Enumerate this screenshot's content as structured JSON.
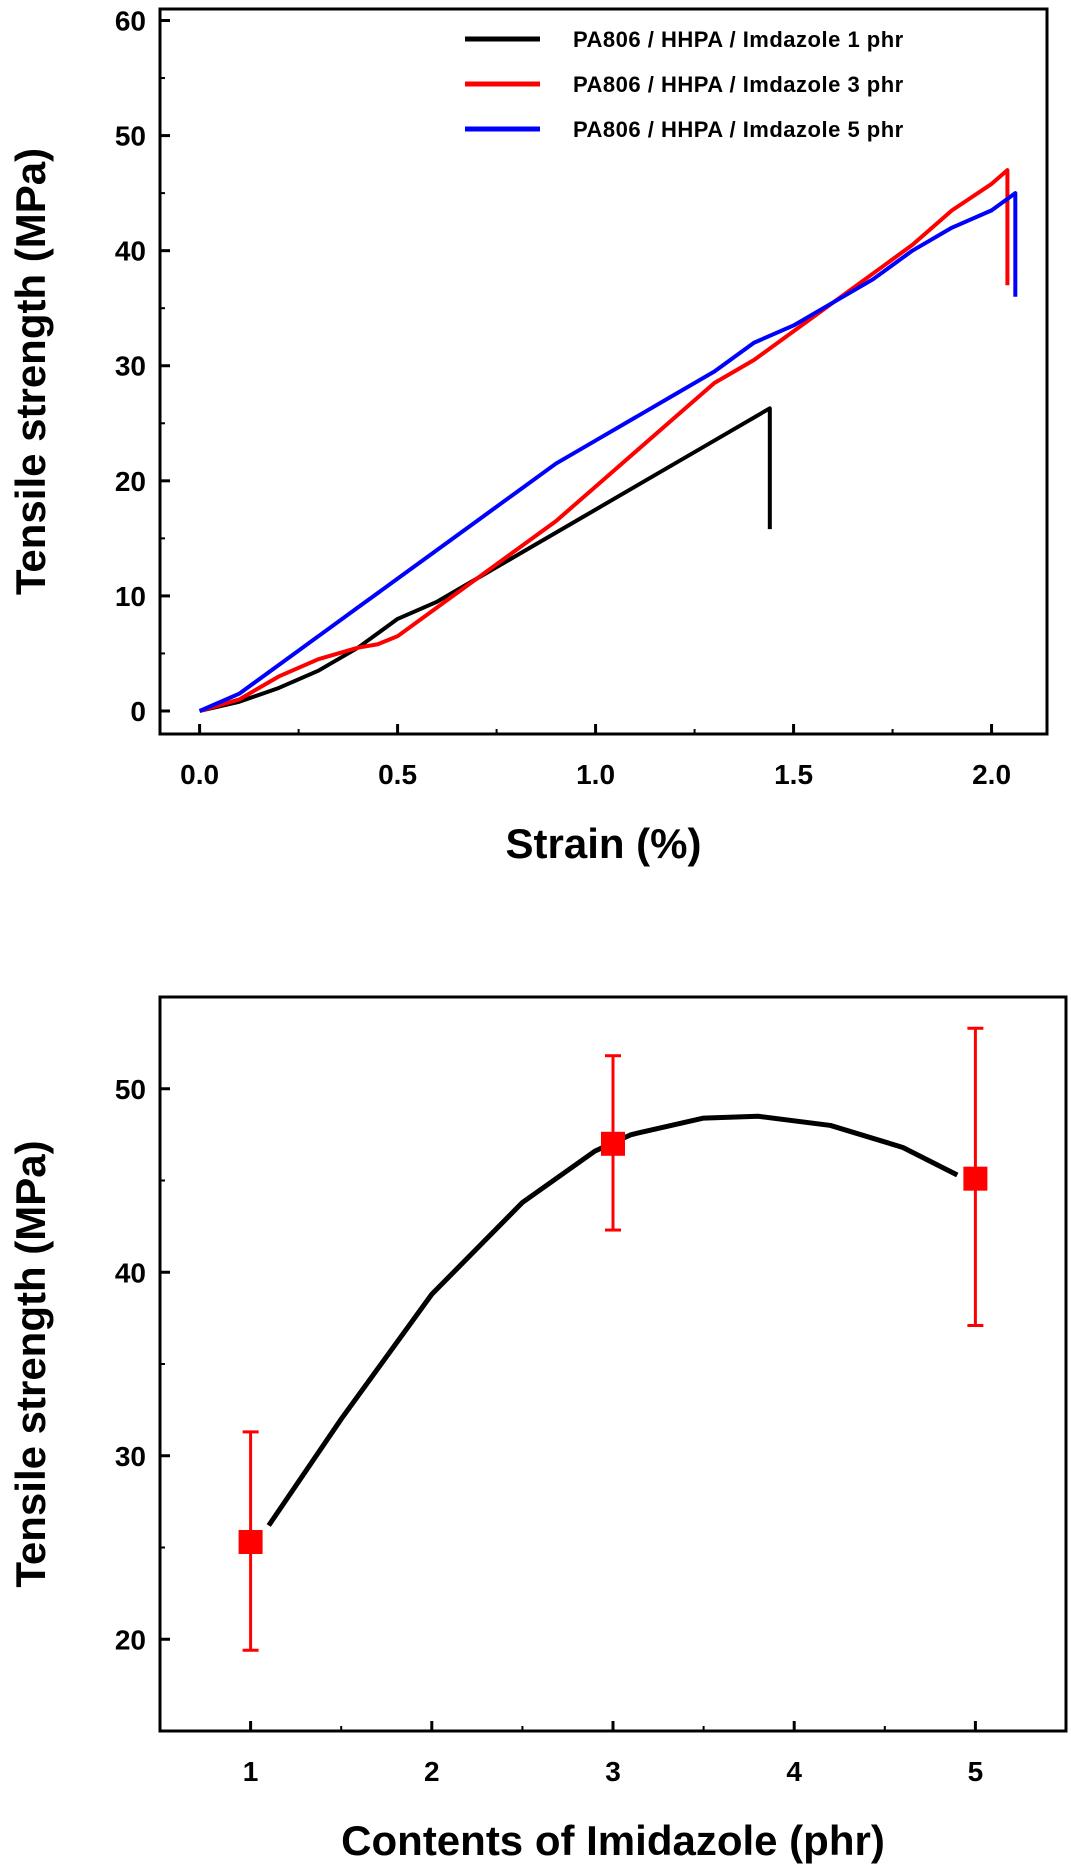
{
  "chart_data": [
    {
      "type": "line",
      "xlabel": "Strain (%)",
      "ylabel": "Tensile strength (MPa)",
      "xlim": [
        -0.1,
        2.14
      ],
      "ylim": [
        -2,
        61
      ],
      "xticks": [
        0.0,
        0.5,
        1.0,
        1.5,
        2.0
      ],
      "xtick_labels": [
        "0.0",
        "0.5",
        "1.0",
        "1.5",
        "2.0"
      ],
      "yticks": [
        0,
        10,
        20,
        30,
        40,
        50,
        60
      ],
      "ytick_labels": [
        "0",
        "10",
        "20",
        "30",
        "40",
        "50",
        "60"
      ],
      "grid": false,
      "legend_position": "top-right",
      "series": [
        {
          "name": "PA806 / HHPA / Imdazole 1 phr",
          "color": "#000000",
          "x": [
            0,
            0.1,
            0.2,
            0.3,
            0.4,
            0.5,
            0.6,
            0.7,
            0.8,
            0.9,
            1.0,
            1.1,
            1.2,
            1.3,
            1.44,
            1.44
          ],
          "y": [
            0,
            0.8,
            2,
            3.5,
            5.5,
            8,
            9.5,
            11.5,
            13.5,
            15.5,
            17.5,
            19.5,
            21.5,
            23.5,
            26.3,
            15.8
          ]
        },
        {
          "name": "PA806 / HHPA / Imdazole 3 phr",
          "color": "#ff0000",
          "x": [
            0,
            0.1,
            0.2,
            0.3,
            0.4,
            0.45,
            0.5,
            0.6,
            0.7,
            0.8,
            0.9,
            1.0,
            1.1,
            1.2,
            1.3,
            1.4,
            1.5,
            1.6,
            1.7,
            1.8,
            1.9,
            2.0,
            2.04,
            2.04
          ],
          "y": [
            0,
            1,
            3,
            4.5,
            5.5,
            5.8,
            6.5,
            9,
            11.5,
            14,
            16.5,
            19.5,
            22.5,
            25.5,
            28.5,
            30.5,
            33,
            35.5,
            38,
            40.5,
            43.5,
            45.8,
            47,
            37
          ]
        },
        {
          "name": "PA806 / HHPA / Imdazole 5 phr",
          "color": "#0000ff",
          "x": [
            0,
            0.1,
            0.2,
            0.3,
            0.4,
            0.5,
            0.6,
            0.7,
            0.8,
            0.9,
            1.0,
            1.1,
            1.2,
            1.3,
            1.4,
            1.5,
            1.6,
            1.7,
            1.8,
            1.9,
            2.0,
            2.06,
            2.06
          ],
          "y": [
            0,
            1.5,
            4,
            6.5,
            9,
            11.5,
            14,
            16.5,
            19,
            21.5,
            23.5,
            25.5,
            27.5,
            29.5,
            32,
            33.5,
            35.5,
            37.5,
            40,
            42,
            43.5,
            45,
            36
          ]
        }
      ]
    },
    {
      "type": "scatter",
      "xlabel": "Contents of Imidazole (phr)",
      "ylabel": "Tensile strength (MPa)",
      "xlim": [
        0.5,
        5.5
      ],
      "ylim": [
        15,
        55
      ],
      "xticks": [
        1,
        2,
        3,
        4,
        5
      ],
      "xtick_labels": [
        "1",
        "2",
        "3",
        "4",
        "5"
      ],
      "yticks": [
        20,
        30,
        40,
        50
      ],
      "ytick_labels": [
        "20",
        "30",
        "40",
        "50"
      ],
      "grid": false,
      "points": {
        "color": "#ff0000",
        "x": [
          1,
          3,
          5
        ],
        "y": [
          25.3,
          47.0,
          45.1
        ],
        "err_low": [
          19.4,
          42.3,
          37.1
        ],
        "err_high": [
          31.3,
          51.8,
          53.3
        ]
      },
      "fit_curve": {
        "color": "#000000",
        "x": [
          1.1,
          1.5,
          2.0,
          2.5,
          2.9,
          3.1,
          3.5,
          3.8,
          4.2,
          4.6,
          4.9
        ],
        "y": [
          26.2,
          32.0,
          38.8,
          43.8,
          46.6,
          47.5,
          48.4,
          48.5,
          48.0,
          46.8,
          45.3
        ]
      }
    }
  ]
}
